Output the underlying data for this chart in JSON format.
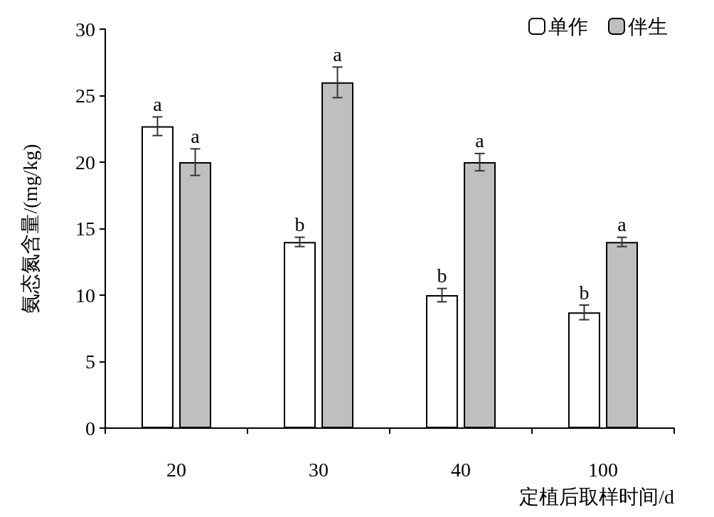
{
  "chart_data": {
    "type": "bar",
    "xlabel": "定植后取样时间/d",
    "ylabel": "氨态氮含量/(mg/kg)",
    "categories": [
      "20",
      "30",
      "40",
      "100"
    ],
    "series": [
      {
        "name": "单作",
        "color": "#ffffff",
        "values": [
          22.7,
          14.0,
          10.0,
          8.7
        ],
        "errors": [
          0.7,
          0.35,
          0.5,
          0.55
        ]
      },
      {
        "name": "伴生",
        "color": "#bfbfbf",
        "values": [
          20.0,
          26.0,
          20.0,
          14.0
        ],
        "errors": [
          1.0,
          1.15,
          0.65,
          0.35
        ]
      }
    ],
    "annotations": [
      "a",
      "a",
      "b",
      "a",
      "b",
      "a",
      "b",
      "a"
    ],
    "ylim": [
      0,
      30
    ],
    "yticks": [
      0,
      5,
      10,
      15,
      20,
      25,
      30
    ],
    "grid": false,
    "legend": "top right"
  }
}
